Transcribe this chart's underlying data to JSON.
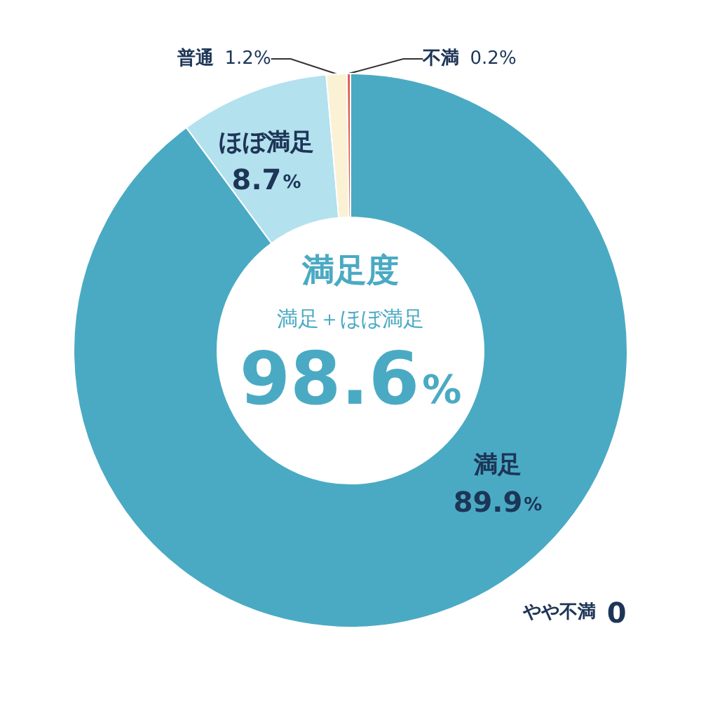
{
  "chart_data": {
    "type": "donut",
    "categories": [
      "満足",
      "ほぼ満足",
      "普通",
      "やや不満",
      "不満"
    ],
    "values": [
      89.9,
      8.7,
      1.2,
      0,
      0.2
    ],
    "colors": [
      "#4aaac3",
      "#b3e1ee",
      "#fbf1d4",
      "#f4a259",
      "#e2574c"
    ],
    "value_labels": [
      "89.9%",
      "8.7%",
      "1.2%",
      "0",
      "0.2%"
    ],
    "annotations": [
      "満足度",
      "満足＋ほぼ満足",
      "98.6%"
    ]
  }
}
